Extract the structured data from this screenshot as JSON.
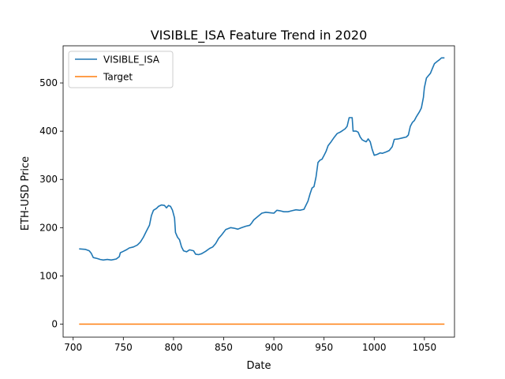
{
  "chart_data": {
    "type": "line",
    "title": "VISIBLE_ISA Feature Trend in 2020",
    "xlabel": "Date",
    "ylabel": "ETH-USD Price",
    "xlim": [
      690,
      1080
    ],
    "ylim": [
      -27,
      577
    ],
    "xticks": [
      700,
      750,
      800,
      850,
      900,
      950,
      1000,
      1050
    ],
    "yticks": [
      0,
      100,
      200,
      300,
      400,
      500
    ],
    "grid": false,
    "legend_position": "top-left",
    "series": [
      {
        "name": "VISIBLE_ISA",
        "color": "#1f77b4",
        "points": [
          [
            706,
            156
          ],
          [
            712,
            155
          ],
          [
            716,
            152
          ],
          [
            718,
            147
          ],
          [
            720,
            138
          ],
          [
            724,
            136
          ],
          [
            727,
            134
          ],
          [
            730,
            133
          ],
          [
            734,
            134
          ],
          [
            738,
            133
          ],
          [
            743,
            135
          ],
          [
            746,
            140
          ],
          [
            747,
            148
          ],
          [
            750,
            151
          ],
          [
            753,
            154
          ],
          [
            756,
            158
          ],
          [
            760,
            160
          ],
          [
            764,
            164
          ],
          [
            767,
            170
          ],
          [
            770,
            180
          ],
          [
            773,
            193
          ],
          [
            776,
            205
          ],
          [
            778,
            225
          ],
          [
            780,
            236
          ],
          [
            783,
            240
          ],
          [
            785,
            244
          ],
          [
            788,
            247
          ],
          [
            791,
            246
          ],
          [
            793,
            241
          ],
          [
            795,
            246
          ],
          [
            797,
            244
          ],
          [
            799,
            236
          ],
          [
            801,
            220
          ],
          [
            802,
            190
          ],
          [
            804,
            180
          ],
          [
            806,
            175
          ],
          [
            808,
            160
          ],
          [
            810,
            152
          ],
          [
            813,
            150
          ],
          [
            816,
            154
          ],
          [
            820,
            152
          ],
          [
            822,
            145
          ],
          [
            825,
            144
          ],
          [
            828,
            146
          ],
          [
            832,
            151
          ],
          [
            836,
            157
          ],
          [
            839,
            160
          ],
          [
            842,
            167
          ],
          [
            845,
            178
          ],
          [
            848,
            185
          ],
          [
            852,
            196
          ],
          [
            857,
            200
          ],
          [
            860,
            199
          ],
          [
            864,
            197
          ],
          [
            868,
            200
          ],
          [
            872,
            203
          ],
          [
            876,
            205
          ],
          [
            878,
            210
          ],
          [
            880,
            216
          ],
          [
            884,
            223
          ],
          [
            888,
            230
          ],
          [
            892,
            232
          ],
          [
            896,
            231
          ],
          [
            900,
            230
          ],
          [
            903,
            236
          ],
          [
            906,
            235
          ],
          [
            910,
            233
          ],
          [
            914,
            233
          ],
          [
            918,
            235
          ],
          [
            922,
            237
          ],
          [
            926,
            236
          ],
          [
            930,
            238
          ],
          [
            934,
            255
          ],
          [
            936,
            270
          ],
          [
            938,
            282
          ],
          [
            940,
            285
          ],
          [
            942,
            305
          ],
          [
            944,
            335
          ],
          [
            946,
            340
          ],
          [
            948,
            342
          ],
          [
            950,
            350
          ],
          [
            952,
            358
          ],
          [
            954,
            370
          ],
          [
            957,
            378
          ],
          [
            960,
            387
          ],
          [
            963,
            395
          ],
          [
            966,
            398
          ],
          [
            969,
            402
          ],
          [
            971,
            405
          ],
          [
            973,
            410
          ],
          [
            975,
            428
          ],
          [
            978,
            428
          ],
          [
            979,
            400
          ],
          [
            982,
            400
          ],
          [
            984,
            398
          ],
          [
            986,
            388
          ],
          [
            988,
            382
          ],
          [
            990,
            380
          ],
          [
            992,
            378
          ],
          [
            994,
            384
          ],
          [
            996,
            378
          ],
          [
            998,
            362
          ],
          [
            1000,
            350
          ],
          [
            1003,
            352
          ],
          [
            1006,
            355
          ],
          [
            1008,
            354
          ],
          [
            1012,
            357
          ],
          [
            1015,
            360
          ],
          [
            1018,
            368
          ],
          [
            1020,
            383
          ],
          [
            1024,
            384
          ],
          [
            1028,
            386
          ],
          [
            1032,
            388
          ],
          [
            1034,
            392
          ],
          [
            1036,
            410
          ],
          [
            1038,
            418
          ],
          [
            1040,
            422
          ],
          [
            1042,
            430
          ],
          [
            1045,
            440
          ],
          [
            1047,
            448
          ],
          [
            1049,
            470
          ],
          [
            1050,
            490
          ],
          [
            1052,
            510
          ],
          [
            1054,
            515
          ],
          [
            1056,
            520
          ],
          [
            1058,
            530
          ],
          [
            1060,
            540
          ],
          [
            1063,
            545
          ],
          [
            1065,
            548
          ],
          [
            1067,
            552
          ],
          [
            1070,
            552
          ]
        ]
      },
      {
        "name": "Target",
        "color": "#ff7f0e",
        "points": [
          [
            706,
            0
          ],
          [
            1070,
            0
          ]
        ]
      }
    ]
  }
}
